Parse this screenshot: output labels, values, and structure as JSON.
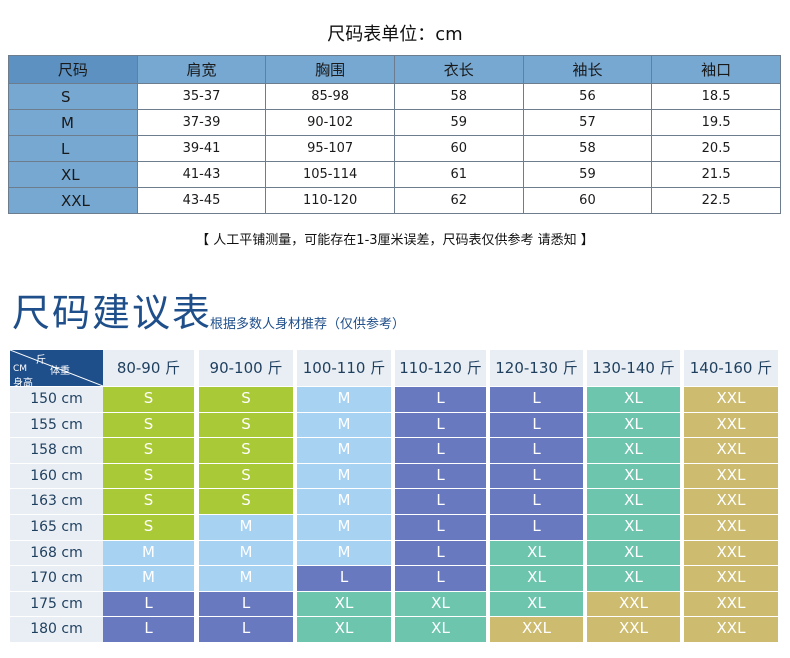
{
  "size_table": {
    "title": "尺码表单位：cm",
    "headers": [
      "尺码",
      "肩宽",
      "胸围",
      "衣长",
      "袖长",
      "袖口"
    ],
    "rows": [
      [
        "S",
        "35-37",
        "85-98",
        "58",
        "56",
        "18.5"
      ],
      [
        "M",
        "37-39",
        "90-102",
        "59",
        "57",
        "19.5"
      ],
      [
        "L",
        "39-41",
        "95-107",
        "60",
        "58",
        "20.5"
      ],
      [
        "XL",
        "41-43",
        "105-114",
        "61",
        "59",
        "21.5"
      ],
      [
        "XXL",
        "43-45",
        "110-120",
        "62",
        "60",
        "22.5"
      ]
    ],
    "note": "【    人工平铺测量，可能存在1-3厘米误差，尺码表仅供参考 请悉知    】"
  },
  "recommend": {
    "title": "尺码建议表",
    "subtitle": "根据多数人身材推荐（仅供参考）",
    "corner": {
      "weight_1": "斤",
      "weight_2": "体重",
      "height_1": "CM",
      "height_2": "身高"
    },
    "weights": [
      "80-90 斤",
      "90-100 斤",
      "100-110 斤",
      "110-120 斤",
      "120-130 斤",
      "130-140 斤",
      "140-160 斤"
    ],
    "heights": [
      "150 cm",
      "155 cm",
      "158 cm",
      "160 cm",
      "163 cm",
      "165 cm",
      "168 cm",
      "170 cm",
      "175 cm",
      "180 cm"
    ],
    "sizes": [
      [
        "S",
        "S",
        "M",
        "L",
        "L",
        "XL",
        "XXL"
      ],
      [
        "S",
        "S",
        "M",
        "L",
        "L",
        "XL",
        "XXL"
      ],
      [
        "S",
        "S",
        "M",
        "L",
        "L",
        "XL",
        "XXL"
      ],
      [
        "S",
        "S",
        "M",
        "L",
        "L",
        "XL",
        "XXL"
      ],
      [
        "S",
        "S",
        "M",
        "L",
        "L",
        "XL",
        "XXL"
      ],
      [
        "S",
        "M",
        "M",
        "L",
        "L",
        "XL",
        "XXL"
      ],
      [
        "M",
        "M",
        "M",
        "L",
        "XL",
        "XL",
        "XXL"
      ],
      [
        "M",
        "M",
        "L",
        "L",
        "XL",
        "XL",
        "XXL"
      ],
      [
        "L",
        "L",
        "XL",
        "XL",
        "XL",
        "XXL",
        "XXL"
      ],
      [
        "L",
        "L",
        "XL",
        "XL",
        "XXL",
        "XXL",
        "XXL"
      ]
    ],
    "size_colors": {
      "S": "#a9c936",
      "M": "#a7d2f2",
      "L": "#6879c0",
      "XL": "#6ec5ae",
      "XXL": "#cdbb6f"
    }
  }
}
